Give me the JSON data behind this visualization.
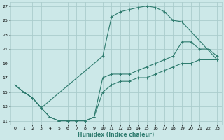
{
  "xlabel": "Humidex (Indice chaleur)",
  "xlim": [
    -0.5,
    23.5
  ],
  "ylim": [
    10.5,
    27.5
  ],
  "xticks": [
    0,
    1,
    2,
    3,
    4,
    5,
    6,
    7,
    8,
    9,
    10,
    11,
    12,
    13,
    14,
    15,
    16,
    17,
    18,
    19,
    20,
    21,
    22,
    23
  ],
  "yticks": [
    11,
    13,
    15,
    17,
    19,
    21,
    23,
    25,
    27
  ],
  "bg_color": "#cce8e8",
  "grid_color": "#aacccc",
  "line_color": "#2e7b6e",
  "curve1_x": [
    0,
    1,
    2,
    3,
    10,
    11,
    12,
    13,
    14,
    15,
    16,
    17,
    18,
    19,
    23
  ],
  "curve1_y": [
    16,
    15,
    14.2,
    12.8,
    20,
    25.5,
    26.2,
    26.5,
    26.8,
    27,
    26.8,
    26.2,
    25,
    24.8,
    19.5
  ],
  "curve2_x": [
    0,
    1,
    2,
    3,
    4,
    5,
    6,
    7,
    8,
    9,
    10,
    11,
    12,
    13,
    14,
    15,
    16,
    17,
    18,
    19,
    20,
    21,
    22,
    23
  ],
  "curve2_y": [
    16,
    15,
    14.2,
    12.8,
    11.5,
    11,
    11,
    11,
    11,
    11.5,
    17,
    17.5,
    17.5,
    17.5,
    18,
    18.5,
    19,
    19.5,
    20,
    22,
    22,
    21,
    21,
    20
  ],
  "curve3_x": [
    0,
    1,
    2,
    3,
    4,
    5,
    6,
    7,
    8,
    9,
    10,
    11,
    12,
    13,
    14,
    15,
    16,
    17,
    18,
    19,
    20,
    21,
    22,
    23
  ],
  "curve3_y": [
    16,
    15,
    14.2,
    12.8,
    11.5,
    11,
    11,
    11,
    11,
    11.5,
    15,
    16,
    16.5,
    16.5,
    17,
    17,
    17.5,
    18,
    18.5,
    19,
    19,
    19.5,
    19.5,
    19.5
  ]
}
